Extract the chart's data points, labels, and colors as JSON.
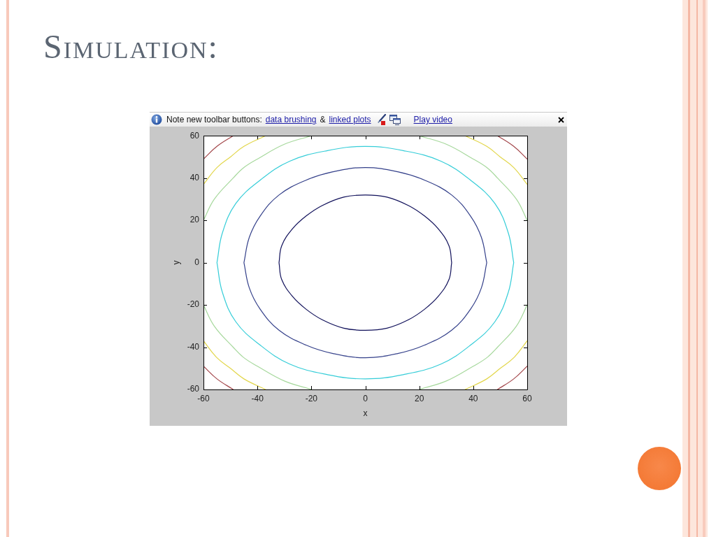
{
  "chart_data": {
    "type": "line",
    "title": "Simulation:",
    "xlabel": "x",
    "ylabel": "y",
    "annotations": [
      "Note new toolbar buttons:",
      "data brushing",
      "&",
      "linked plots",
      "Play video"
    ],
    "xlim": [
      -60,
      60
    ],
    "ylim": [
      -60,
      60
    ],
    "xticks": [
      -60,
      -40,
      -20,
      0,
      20,
      40,
      60
    ],
    "yticks": [
      -60,
      -40,
      -20,
      0,
      20,
      40,
      60
    ],
    "line_style": "solid",
    "series": [
      {
        "color": "#10105a",
        "x": [
          -32,
          -31,
          -27,
          -22,
          -16,
          -8,
          0,
          8,
          16,
          22,
          27,
          31,
          32,
          null,
          -32,
          -31,
          -27,
          -22,
          -16,
          -8,
          0,
          8,
          16,
          22,
          27,
          31,
          32
        ],
        "values": [
          0,
          8,
          16,
          22,
          27,
          31,
          32,
          31,
          27,
          22,
          16,
          8,
          0,
          null,
          0,
          -8,
          -16,
          -22,
          -27,
          -31,
          -32,
          -31,
          -27,
          -22,
          -16,
          -8,
          0
        ]
      },
      {
        "color": "#34408a",
        "x": [
          -45,
          -43,
          -39,
          -32,
          -22,
          -12,
          0,
          12,
          22,
          32,
          39,
          43,
          45,
          null,
          -45,
          -43,
          -39,
          -32,
          -22,
          -12,
          0,
          12,
          22,
          32,
          39,
          43,
          45
        ],
        "values": [
          0,
          12,
          22,
          32,
          39,
          43,
          45,
          43,
          39,
          32,
          22,
          12,
          0,
          null,
          0,
          -12,
          -22,
          -32,
          -39,
          -43,
          -45,
          -43,
          -39,
          -32,
          -22,
          -12,
          0
        ]
      },
      {
        "color": "#35cdd8",
        "x": [
          -55,
          -53,
          -48,
          -39,
          -28,
          -14,
          0,
          14,
          28,
          39,
          48,
          53,
          55,
          null,
          -55,
          -53,
          -48,
          -39,
          -28,
          -14,
          0,
          14,
          28,
          39,
          48,
          53,
          55
        ],
        "values": [
          0,
          14,
          28,
          39,
          48,
          53,
          55,
          53,
          48,
          39,
          28,
          14,
          0,
          null,
          0,
          -14,
          -28,
          -39,
          -48,
          -53,
          -55,
          -53,
          -48,
          -39,
          -28,
          -14,
          0
        ]
      },
      {
        "color": "#a6d89c",
        "x": [
          20,
          30,
          40,
          45,
          49,
          56,
          60,
          null,
          -20,
          -30,
          -40,
          -45,
          -49,
          -56,
          -60,
          null,
          -20,
          -30,
          -40,
          -45,
          -49,
          -56,
          -60,
          null,
          20,
          30,
          40,
          45,
          49,
          56,
          60
        ],
        "values": [
          60,
          56,
          49,
          45,
          40,
          30,
          20,
          null,
          60,
          56,
          49,
          45,
          40,
          30,
          20,
          null,
          -60,
          -56,
          -49,
          -45,
          -40,
          -30,
          -20,
          null,
          -60,
          -56,
          -49,
          -45,
          -40,
          -30,
          -20
        ]
      },
      {
        "color": "#e2d64a",
        "x": [
          37,
          45,
          50,
          55,
          60,
          null,
          -37,
          -45,
          -50,
          -55,
          -60,
          null,
          -37,
          -45,
          -50,
          -55,
          -60,
          null,
          37,
          45,
          50,
          55,
          60
        ],
        "values": [
          60,
          55,
          50,
          45,
          37,
          null,
          60,
          55,
          50,
          45,
          37,
          null,
          -60,
          -55,
          -50,
          -45,
          -37,
          null,
          -60,
          -55,
          -50,
          -45,
          -37
        ]
      },
      {
        "color": "#a3474b",
        "x": [
          49,
          55,
          60,
          null,
          -49,
          -55,
          -60,
          null,
          -49,
          -55,
          -60,
          null,
          49,
          55,
          60
        ],
        "values": [
          60,
          55,
          49,
          null,
          60,
          55,
          49,
          null,
          -60,
          -55,
          -49,
          null,
          -60,
          -55,
          -49
        ]
      }
    ]
  }
}
